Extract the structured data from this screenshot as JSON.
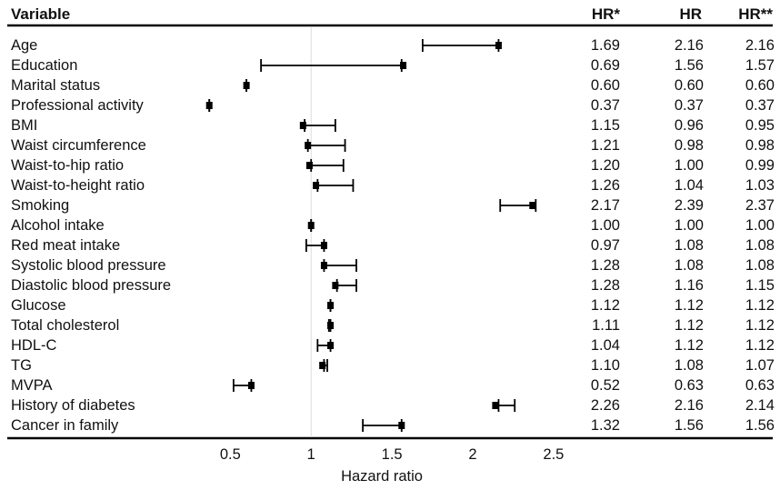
{
  "chart_data": {
    "type": "forest",
    "header": {
      "variable": "Variable",
      "hr_star": "HR*",
      "hr": "HR",
      "hr_2star": "HR**"
    },
    "xlabel": "Hazard ratio",
    "xticks": [
      "0.5",
      "1",
      "1.5",
      "2",
      "2.5"
    ],
    "xlim": [
      0.2,
      2.9
    ],
    "reference_line": 1,
    "rows": [
      {
        "variable": "Age",
        "hr_star": "1.69",
        "hr": "2.16",
        "hr_2star": "2.16"
      },
      {
        "variable": "Education",
        "hr_star": "0.69",
        "hr": "1.56",
        "hr_2star": "1.57"
      },
      {
        "variable": "Marital status",
        "hr_star": "0.60",
        "hr": "0.60",
        "hr_2star": "0.60"
      },
      {
        "variable": "Professional activity",
        "hr_star": "0.37",
        "hr": "0.37",
        "hr_2star": "0.37"
      },
      {
        "variable": "BMI",
        "hr_star": "1.15",
        "hr": "0.96",
        "hr_2star": "0.95"
      },
      {
        "variable": "Waist circumference",
        "hr_star": "1.21",
        "hr": "0.98",
        "hr_2star": "0.98"
      },
      {
        "variable": "Waist-to-hip ratio",
        "hr_star": "1.20",
        "hr": "1.00",
        "hr_2star": "0.99"
      },
      {
        "variable": "Waist-to-height ratio",
        "hr_star": "1.26",
        "hr": "1.04",
        "hr_2star": "1.03"
      },
      {
        "variable": "Smoking",
        "hr_star": "2.17",
        "hr": "2.39",
        "hr_2star": "2.37"
      },
      {
        "variable": "Alcohol intake",
        "hr_star": "1.00",
        "hr": "1.00",
        "hr_2star": "1.00"
      },
      {
        "variable": "Red meat intake",
        "hr_star": "0.97",
        "hr": "1.08",
        "hr_2star": "1.08"
      },
      {
        "variable": "Systolic blood pressure",
        "hr_star": "1.28",
        "hr": "1.08",
        "hr_2star": "1.08"
      },
      {
        "variable": "Diastolic blood pressure",
        "hr_star": "1.28",
        "hr": "1.16",
        "hr_2star": "1.15"
      },
      {
        "variable": "Glucose",
        "hr_star": "1.12",
        "hr": "1.12",
        "hr_2star": "1.12"
      },
      {
        "variable": "Total cholesterol",
        "hr_star": "1.11",
        "hr": "1.12",
        "hr_2star": "1.12"
      },
      {
        "variable": "HDL-C",
        "hr_star": "1.04",
        "hr": "1.12",
        "hr_2star": "1.12"
      },
      {
        "variable": "TG",
        "hr_star": "1.10",
        "hr": "1.08",
        "hr_2star": "1.07"
      },
      {
        "variable": "MVPA",
        "hr_star": "0.52",
        "hr": "0.63",
        "hr_2star": "0.63"
      },
      {
        "variable": "History of diabetes",
        "hr_star": "2.26",
        "hr": "2.16",
        "hr_2star": "2.14"
      },
      {
        "variable": "Cancer in family",
        "hr_star": "1.32",
        "hr": "1.56",
        "hr_2star": "1.56"
      }
    ]
  }
}
